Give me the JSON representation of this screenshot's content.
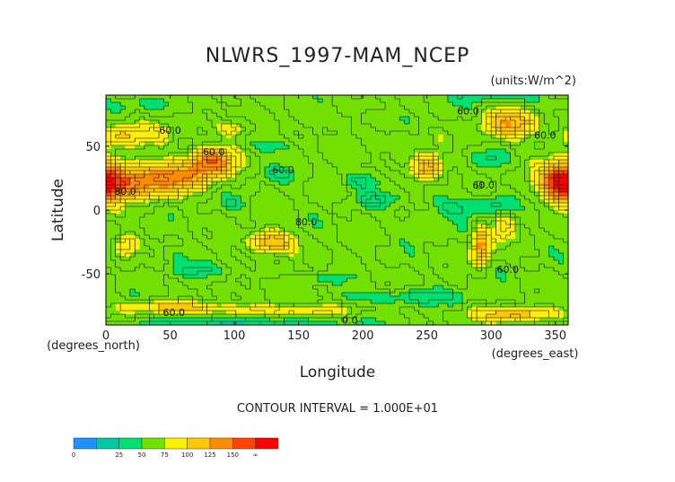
{
  "colors": {
    "background": "#ffffff",
    "frame": "#000000",
    "contour_line": "#000000",
    "levels": [
      "#1e90ff",
      "#00c8a0",
      "#00e070",
      "#72e000",
      "#fff000",
      "#ffc800",
      "#ff8c00",
      "#ff4400",
      "#ff0000"
    ]
  },
  "chart_data": {
    "type": "heatmap",
    "title": "NLWRS_1997-MAM_NCEP",
    "units": "(units:W/m^2)",
    "xlabel": "Longitude",
    "ylabel": "Latitude",
    "xunit": "(degrees_east)",
    "yunit": "(degrees_north)",
    "xlim": [
      0,
      360
    ],
    "ylim": [
      -90,
      90
    ],
    "xticks": [
      0,
      50,
      100,
      150,
      200,
      250,
      300,
      350
    ],
    "yticks": [
      -50,
      0,
      50
    ],
    "contour_interval_text": "CONTOUR INTERVAL = 1.000E+01",
    "contour_labels": [
      {
        "text": "60.0",
        "lon": 50,
        "lat": 62
      },
      {
        "text": "60.0",
        "lon": 84,
        "lat": 45
      },
      {
        "text": "80.0",
        "lon": 15,
        "lat": 14
      },
      {
        "text": "60.0",
        "lon": 138,
        "lat": 31
      },
      {
        "text": "80.0",
        "lon": 156,
        "lat": -10
      },
      {
        "text": "60.0",
        "lon": 282,
        "lat": 77
      },
      {
        "text": "60.0",
        "lon": 342,
        "lat": 58
      },
      {
        "text": "60.0",
        "lon": 294,
        "lat": 19
      },
      {
        "text": "60.0",
        "lon": 313,
        "lat": -47
      },
      {
        "text": "60.0",
        "lon": 53,
        "lat": -81
      },
      {
        "text": "0.0",
        "lon": 190,
        "lat": -87
      }
    ],
    "legend": {
      "tick_labels": [
        "0",
        "25",
        "50",
        "75",
        "100",
        "125",
        "150",
        "∞"
      ],
      "colors": [
        "#1e90ff",
        "#00c8a0",
        "#00e070",
        "#72e000",
        "#fff000",
        "#ffc800",
        "#ff8c00",
        "#ff4400",
        "#ff0000"
      ]
    },
    "field": {
      "base_value": 60,
      "features": [
        {
          "lon": 15,
          "lat": 22,
          "slon": 22,
          "slat": 10,
          "amp": 80
        },
        {
          "lon": 55,
          "lat": 26,
          "slon": 18,
          "slat": 8,
          "amp": 55
        },
        {
          "lon": 82,
          "lat": 38,
          "slon": 12,
          "slat": 8,
          "amp": 85
        },
        {
          "lon": 10,
          "lat": 58,
          "slon": 12,
          "slat": 6,
          "amp": 40
        },
        {
          "lon": 40,
          "lat": 60,
          "slon": 14,
          "slat": 6,
          "amp": 20
        },
        {
          "lon": 15,
          "lat": -28,
          "slon": 6,
          "slat": 6,
          "amp": 45
        },
        {
          "lon": 128,
          "lat": -25,
          "slon": 12,
          "slat": 6,
          "amp": 65
        },
        {
          "lon": 250,
          "lat": 33,
          "slon": 8,
          "slat": 7,
          "amp": 70
        },
        {
          "lon": 292,
          "lat": -28,
          "slon": 5,
          "slat": 10,
          "amp": 75
        },
        {
          "lon": 355,
          "lat": 22,
          "slon": 10,
          "slat": 10,
          "amp": 95
        },
        {
          "lon": 315,
          "lat": 68,
          "slon": 14,
          "slat": 8,
          "amp": 60
        },
        {
          "lon": 320,
          "lat": -82,
          "slon": 22,
          "slat": 4,
          "amp": 55
        },
        {
          "lon": 125,
          "lat": -78,
          "slon": 40,
          "slat": 3,
          "amp": 35
        },
        {
          "lon": 45,
          "lat": -76,
          "slon": 25,
          "slat": 3,
          "amp": 40
        },
        {
          "lon": 100,
          "lat": 64,
          "slon": 10,
          "slat": 5,
          "amp": 25
        },
        {
          "lon": 165,
          "lat": -48,
          "slon": 20,
          "slat": 3,
          "amp": 12
        },
        {
          "lon": 310,
          "lat": -12,
          "slon": 6,
          "slat": 8,
          "amp": 30
        },
        {
          "lon": 230,
          "lat": 60,
          "slon": 30,
          "slat": 8,
          "amp": 8
        },
        {
          "lon": 200,
          "lat": 23,
          "slon": 10,
          "slat": 5,
          "amp": -22
        },
        {
          "lon": 210,
          "lat": 8,
          "slon": 12,
          "slat": 4,
          "amp": -22
        },
        {
          "lon": 135,
          "lat": 28,
          "slon": 10,
          "slat": 4,
          "amp": -16
        },
        {
          "lon": 275,
          "lat": 3,
          "slon": 18,
          "slat": 6,
          "amp": -22
        },
        {
          "lon": 305,
          "lat": 4,
          "slon": 8,
          "slat": 5,
          "amp": -22
        },
        {
          "lon": 235,
          "lat": -68,
          "slon": 40,
          "slat": 4,
          "amp": -22
        },
        {
          "lon": 170,
          "lat": -52,
          "slon": 14,
          "slat": 4,
          "amp": -18
        },
        {
          "lon": 70,
          "lat": -47,
          "slon": 18,
          "slat": 4,
          "amp": -16
        },
        {
          "lon": 245,
          "lat": -10,
          "slon": 12,
          "slat": 6,
          "amp": -12
        },
        {
          "lon": 130,
          "lat": 50,
          "slon": 15,
          "slat": 5,
          "amp": -15
        },
        {
          "lon": 200,
          "lat": 70,
          "slon": 25,
          "slat": 5,
          "amp": -12
        },
        {
          "lon": 300,
          "lat": 40,
          "slon": 10,
          "slat": 5,
          "amp": -15
        },
        {
          "lon": 10,
          "lat": 82,
          "slon": 40,
          "slat": 4,
          "amp": -10
        },
        {
          "lon": 300,
          "lat": 88,
          "slon": 30,
          "slat": 3,
          "amp": -15
        },
        {
          "lon": 100,
          "lat": 5,
          "slon": 8,
          "slat": 4,
          "amp": -15
        },
        {
          "lon": 20,
          "lat": 5,
          "slon": 8,
          "slat": 4,
          "amp": -10
        },
        {
          "lon": 55,
          "lat": -35,
          "slon": 10,
          "slat": 4,
          "amp": -10
        },
        {
          "lon": 100,
          "lat": -88,
          "slon": 60,
          "slat": 2,
          "amp": -35
        }
      ]
    }
  }
}
